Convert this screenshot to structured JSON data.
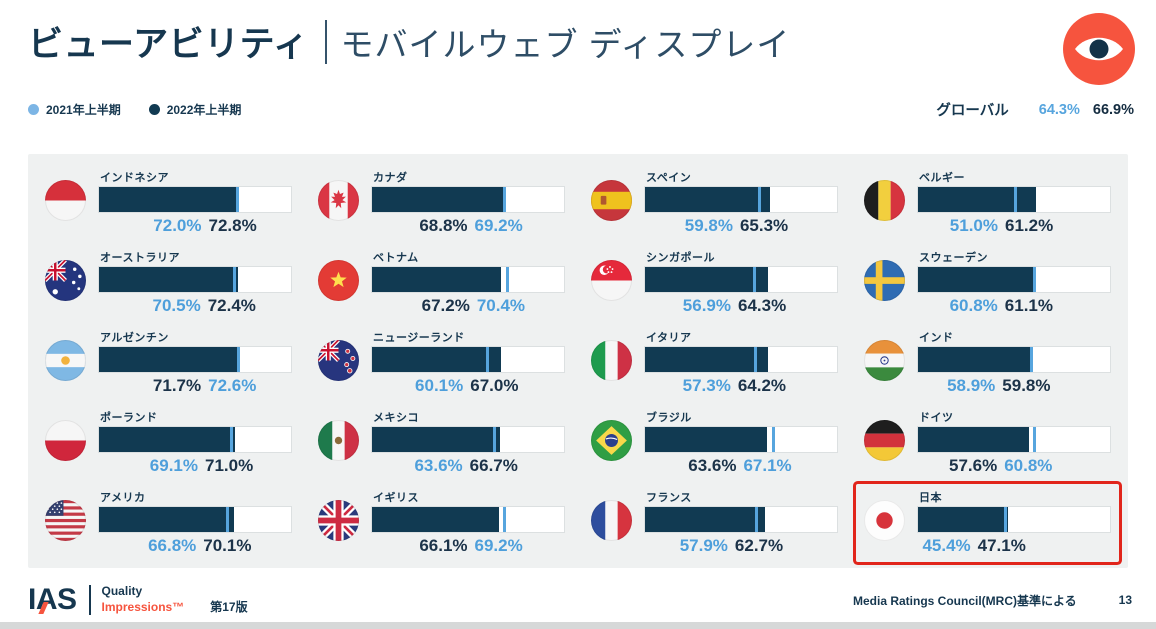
{
  "title": {
    "primary": "ビューアビリティ",
    "secondary": "モバイルウェブ ディスプレイ"
  },
  "icons": {
    "header": "eye-icon",
    "country_marker": "flag-icon",
    "legend_marker": "legend-dot"
  },
  "colors": {
    "navy_text": "#16374F",
    "bar_fill_2022": "#113A52",
    "marker_2021": "#57A5DE",
    "value_2021_text": "#4E9FDB",
    "value_2022_text": "#1C3349",
    "coral_accent": "#F6543E",
    "highlight_box": "#E1251B",
    "panel_background": "#EFF1F1"
  },
  "legend": {
    "items": [
      {
        "label": "2021年上半期",
        "color": "#7CB5E5"
      },
      {
        "label": "2022年上半期",
        "color": "#113A52"
      }
    ]
  },
  "footer": {
    "logo": "IAS",
    "tagline_top": "Quality",
    "tagline_bottom": "Impressions™",
    "edition": "第17版",
    "note": "Media Ratings Council(MRC)基準による",
    "page": "13"
  },
  "chart_data": {
    "type": "bar",
    "orientation": "horizontal",
    "title": "ビューアビリティ | モバイルウェブ ディスプレイ",
    "series_labels": [
      "2021年上半期",
      "2022年上半期"
    ],
    "unit": "%",
    "xlim": [
      0,
      100
    ],
    "grid": "4 columns x 5 rows, column-major order",
    "global": {
      "label": "グローバル",
      "y2021": 64.3,
      "y2022": 66.9
    },
    "countries": [
      {
        "name": "インドネシア",
        "flag": "indonesia",
        "y2021": 72.0,
        "y2022": 72.8,
        "highlight": false
      },
      {
        "name": "オーストラリア",
        "flag": "australia",
        "y2021": 70.5,
        "y2022": 72.4,
        "highlight": false
      },
      {
        "name": "アルゼンチン",
        "flag": "argentina",
        "y2021": 72.6,
        "y2022": 71.7,
        "highlight": false
      },
      {
        "name": "ポーランド",
        "flag": "poland",
        "y2021": 69.1,
        "y2022": 71.0,
        "highlight": false
      },
      {
        "name": "アメリカ",
        "flag": "usa",
        "y2021": 66.8,
        "y2022": 70.1,
        "highlight": false
      },
      {
        "name": "カナダ",
        "flag": "canada",
        "y2021": 69.2,
        "y2022": 68.8,
        "highlight": false
      },
      {
        "name": "ベトナム",
        "flag": "vietnam",
        "y2021": 70.4,
        "y2022": 67.2,
        "highlight": false
      },
      {
        "name": "ニュージーランド",
        "flag": "new-zealand",
        "y2021": 60.1,
        "y2022": 67.0,
        "highlight": false
      },
      {
        "name": "メキシコ",
        "flag": "mexico",
        "y2021": 63.6,
        "y2022": 66.7,
        "highlight": false
      },
      {
        "name": "イギリス",
        "flag": "uk",
        "y2021": 69.2,
        "y2022": 66.1,
        "highlight": false
      },
      {
        "name": "スペイン",
        "flag": "spain",
        "y2021": 59.8,
        "y2022": 65.3,
        "highlight": false
      },
      {
        "name": "シンガポール",
        "flag": "singapore",
        "y2021": 56.9,
        "y2022": 64.3,
        "highlight": false
      },
      {
        "name": "イタリア",
        "flag": "italy",
        "y2021": 57.3,
        "y2022": 64.2,
        "highlight": false
      },
      {
        "name": "ブラジル",
        "flag": "brazil",
        "y2021": 67.1,
        "y2022": 63.6,
        "highlight": false
      },
      {
        "name": "フランス",
        "flag": "france",
        "y2021": 57.9,
        "y2022": 62.7,
        "highlight": false
      },
      {
        "name": "ベルギー",
        "flag": "belgium",
        "y2021": 51.0,
        "y2022": 61.2,
        "highlight": false
      },
      {
        "name": "スウェーデン",
        "flag": "sweden",
        "y2021": 60.8,
        "y2022": 61.1,
        "highlight": false
      },
      {
        "name": "インド",
        "flag": "india",
        "y2021": 58.9,
        "y2022": 59.8,
        "highlight": false
      },
      {
        "name": "ドイツ",
        "flag": "germany",
        "y2021": 60.8,
        "y2022": 57.6,
        "highlight": false
      },
      {
        "name": "日本",
        "flag": "japan",
        "y2021": 45.4,
        "y2022": 47.1,
        "highlight": true
      }
    ]
  }
}
